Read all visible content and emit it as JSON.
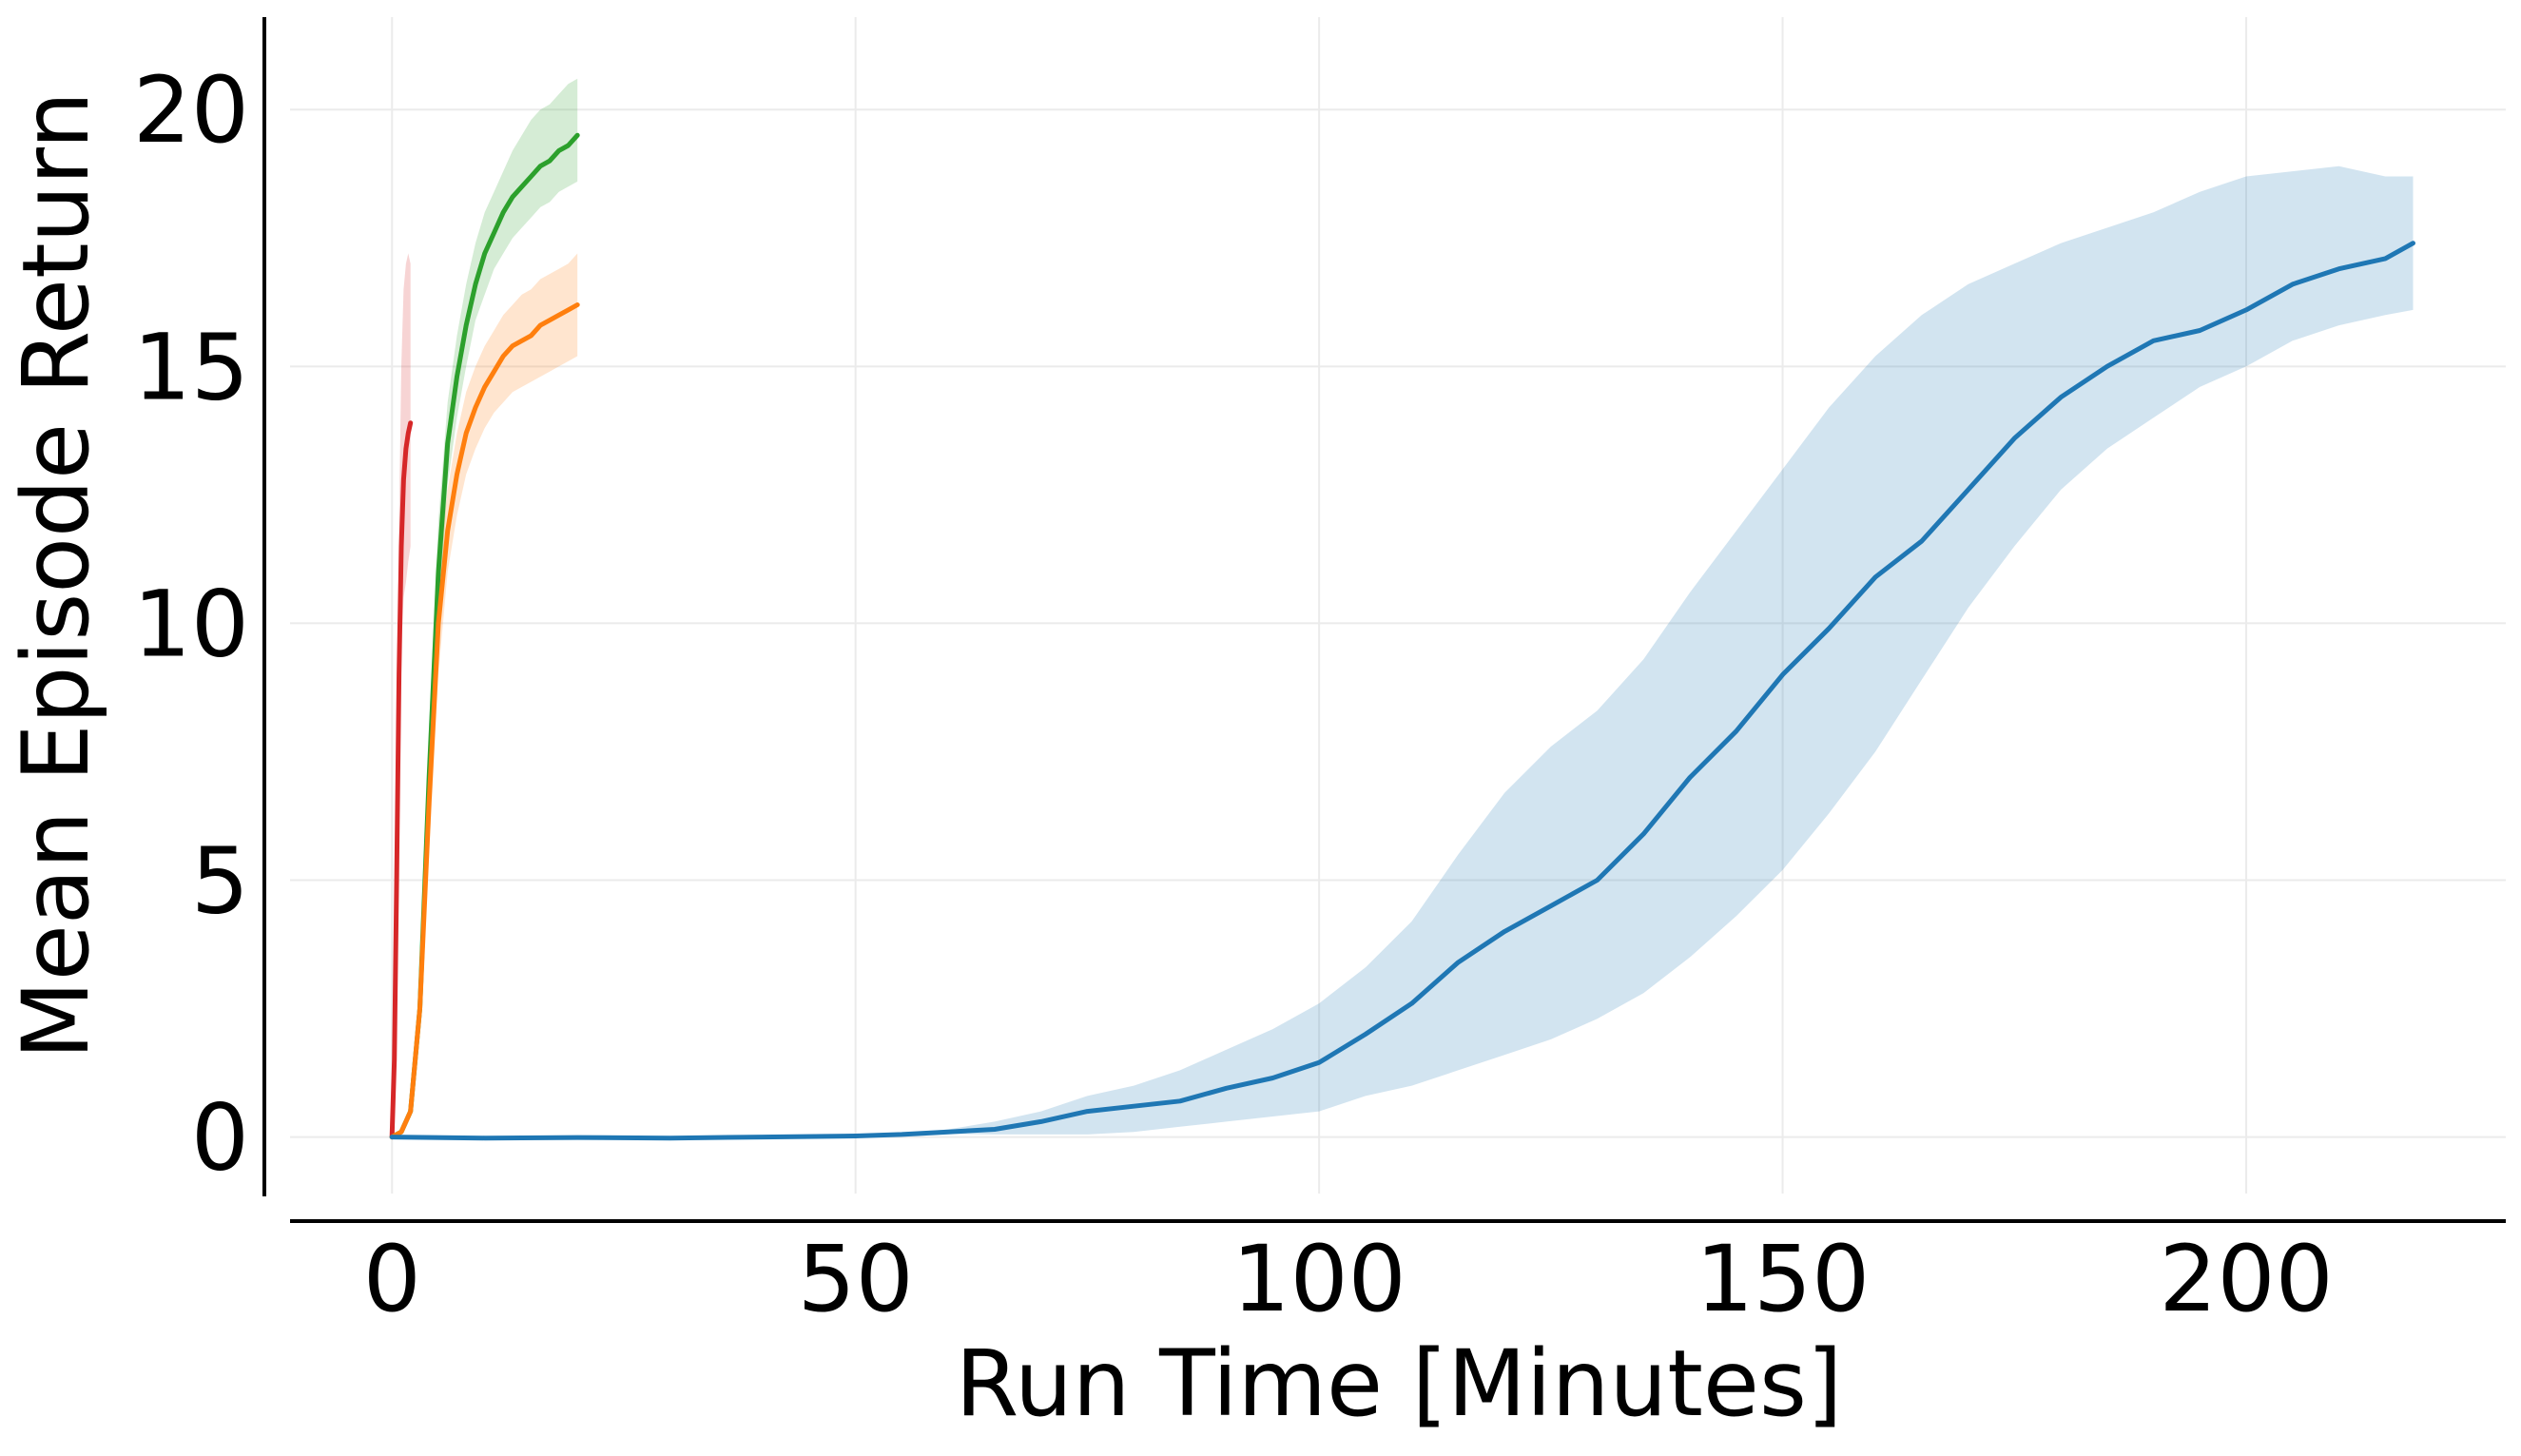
{
  "chart_data": {
    "type": "line",
    "xlabel": "Run Time [Minutes]",
    "ylabel": "Mean Episode Return",
    "xlim": [
      -11,
      228
    ],
    "ylim": [
      -1.1,
      21.8
    ],
    "xticks": [
      0,
      50,
      100,
      150,
      200
    ],
    "yticks": [
      0,
      5,
      10,
      15,
      20
    ],
    "grid": true,
    "legend": "none",
    "series": [
      {
        "color": "#d62728",
        "band": true,
        "x": [
          0,
          0.25,
          0.5,
          0.75,
          1.0,
          1.25,
          1.5,
          1.75,
          2.0
        ],
        "y": [
          0,
          1.5,
          5.0,
          9.0,
          11.5,
          12.8,
          13.4,
          13.7,
          13.9
        ],
        "lower": [
          0,
          1.0,
          3.5,
          7.0,
          9.5,
          10.5,
          10.8,
          11.2,
          11.5
        ],
        "upper": [
          0,
          2.0,
          7.0,
          12.0,
          15.0,
          16.5,
          17.0,
          17.2,
          17.0
        ]
      },
      {
        "color": "#2ca02c",
        "band": true,
        "x": [
          0,
          1,
          2,
          3,
          4,
          5,
          6,
          7,
          8,
          9,
          10,
          11,
          12,
          13,
          14,
          15,
          16,
          17,
          18,
          19,
          20
        ],
        "y": [
          0,
          0.1,
          0.5,
          2.5,
          7.0,
          11.0,
          13.5,
          14.8,
          15.8,
          16.6,
          17.2,
          17.6,
          18.0,
          18.3,
          18.5,
          18.7,
          18.9,
          19.0,
          19.2,
          19.3,
          19.5
        ],
        "lower": [
          0,
          0.1,
          0.4,
          2.0,
          6.0,
          10.0,
          12.7,
          14.0,
          15.0,
          15.9,
          16.4,
          16.9,
          17.2,
          17.5,
          17.7,
          17.9,
          18.1,
          18.2,
          18.4,
          18.5,
          18.6
        ],
        "upper": [
          0,
          0.1,
          0.6,
          3.0,
          8.0,
          12.0,
          14.3,
          15.6,
          16.6,
          17.4,
          18.0,
          18.4,
          18.8,
          19.2,
          19.5,
          19.8,
          20.0,
          20.1,
          20.3,
          20.5,
          20.6
        ]
      },
      {
        "color": "#ff7f0e",
        "band": true,
        "x": [
          0,
          1,
          2,
          3,
          4,
          5,
          6,
          7,
          8,
          9,
          10,
          11,
          12,
          13,
          14,
          15,
          16,
          17,
          18,
          19,
          20
        ],
        "y": [
          0,
          0.1,
          0.5,
          2.5,
          6.5,
          10.0,
          11.8,
          12.9,
          13.7,
          14.2,
          14.6,
          14.9,
          15.2,
          15.4,
          15.5,
          15.6,
          15.8,
          15.9,
          16.0,
          16.1,
          16.2
        ],
        "lower": [
          0,
          0.1,
          0.4,
          2.0,
          5.5,
          9.0,
          11.0,
          12.1,
          12.9,
          13.4,
          13.8,
          14.1,
          14.3,
          14.5,
          14.6,
          14.7,
          14.8,
          14.9,
          15.0,
          15.1,
          15.2
        ],
        "upper": [
          0,
          0.1,
          0.6,
          3.0,
          7.5,
          11.0,
          12.6,
          13.7,
          14.5,
          15.0,
          15.4,
          15.7,
          16.0,
          16.2,
          16.4,
          16.5,
          16.7,
          16.8,
          16.9,
          17.0,
          17.2
        ]
      },
      {
        "color": "#1f77b4",
        "band": true,
        "x": [
          0,
          10,
          20,
          30,
          40,
          50,
          55,
          60,
          65,
          70,
          75,
          80,
          85,
          90,
          95,
          100,
          105,
          110,
          115,
          120,
          125,
          130,
          135,
          140,
          145,
          150,
          155,
          160,
          165,
          170,
          175,
          180,
          185,
          190,
          195,
          200,
          205,
          210,
          215,
          218
        ],
        "y": [
          0,
          -0.02,
          -0.01,
          -0.02,
          0,
          0.02,
          0.05,
          0.1,
          0.15,
          0.3,
          0.5,
          0.6,
          0.7,
          0.95,
          1.15,
          1.45,
          2.0,
          2.6,
          3.4,
          4.0,
          4.5,
          5.0,
          5.9,
          7.0,
          7.9,
          9.0,
          9.9,
          10.9,
          11.6,
          12.6,
          13.6,
          14.4,
          15.0,
          15.5,
          15.7,
          16.1,
          16.6,
          16.9,
          17.1,
          17.4
        ],
        "lower": [
          0,
          -0.02,
          -0.01,
          -0.02,
          0,
          0.02,
          0.04,
          0.06,
          0.05,
          0.05,
          0.05,
          0.1,
          0.2,
          0.3,
          0.4,
          0.5,
          0.8,
          1.0,
          1.3,
          1.6,
          1.9,
          2.3,
          2.8,
          3.5,
          4.3,
          5.2,
          6.3,
          7.5,
          8.9,
          10.3,
          11.5,
          12.6,
          13.4,
          14.0,
          14.6,
          15.0,
          15.5,
          15.8,
          16.0,
          16.1
        ],
        "upper": [
          0,
          -0.02,
          -0.01,
          -0.02,
          0,
          0.02,
          0.06,
          0.15,
          0.3,
          0.5,
          0.8,
          1.0,
          1.3,
          1.7,
          2.1,
          2.6,
          3.3,
          4.2,
          5.5,
          6.7,
          7.6,
          8.3,
          9.3,
          10.6,
          11.8,
          13.0,
          14.2,
          15.2,
          16.0,
          16.6,
          17.0,
          17.4,
          17.7,
          18.0,
          18.4,
          18.7,
          18.8,
          18.9,
          18.7,
          18.7
        ]
      }
    ]
  }
}
